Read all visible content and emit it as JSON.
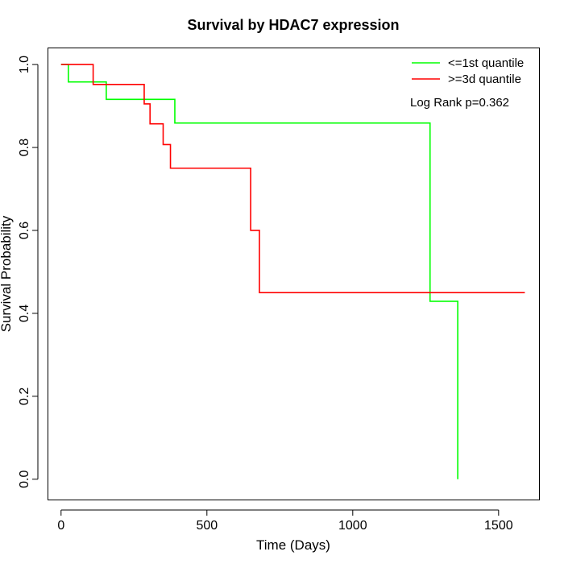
{
  "chart_data": {
    "type": "line",
    "step": true,
    "title": "Survival by HDAC7 expression",
    "xlabel": "Time (Days)",
    "ylabel": "Survival Probability",
    "xlim": [
      -45,
      1640
    ],
    "ylim": [
      -0.05,
      1.04
    ],
    "xticks": [
      0,
      500,
      1000,
      1500
    ],
    "yticks": [
      0.0,
      0.2,
      0.4,
      0.6,
      0.8,
      1.0
    ],
    "xtick_labels": [
      "0",
      "500",
      "1000",
      "1500"
    ],
    "ytick_labels": [
      "0.0",
      "0.2",
      "0.4",
      "0.6",
      "0.8",
      "1.0"
    ],
    "grid": false,
    "legend_position": "top-right",
    "series": [
      {
        "name": "<=1st quantile",
        "color": "#00ff00",
        "x": [
          0,
          25,
          155,
          390,
          1265,
          1360
        ],
        "y": [
          1.0,
          0.958,
          0.916,
          0.859,
          0.429,
          0.0
        ]
      },
      {
        "name": ">=3d quantile",
        "color": "#ff0000",
        "x": [
          0,
          110,
          285,
          305,
          350,
          375,
          650,
          680,
          1590
        ],
        "y": [
          1.0,
          0.952,
          0.905,
          0.857,
          0.807,
          0.75,
          0.6,
          0.45,
          0.45
        ]
      }
    ],
    "annotation": "Log Rank p=0.362"
  }
}
